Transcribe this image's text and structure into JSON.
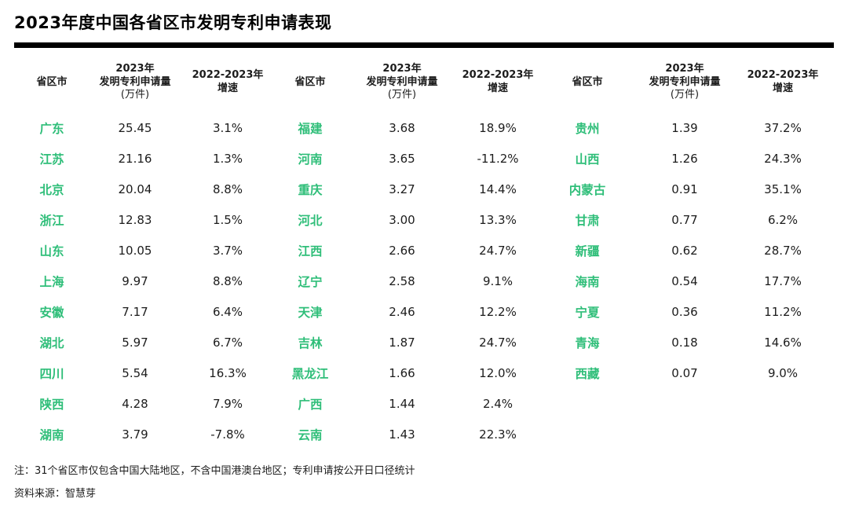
{
  "title": "2023年度中国各省区市发明专利申请表现",
  "colors": {
    "province_green": "#2fbe79",
    "text_dark": "#1c1c1c",
    "rule_black": "#000000"
  },
  "chart_data": {
    "type": "table",
    "title": "2023年度中国各省区市发明专利申请表现",
    "columns": [
      "省区市",
      "2023年发明专利申请量(万件)",
      "2022-2023年增速"
    ],
    "header": {
      "province": "省区市",
      "amount_line1": "2023年",
      "amount_line2": "发明专利申请量",
      "amount_line3": "(万件)",
      "growth_line1": "2022-2023年",
      "growth_line2": "增速"
    },
    "groups": [
      [
        {
          "province": "广东",
          "amount": "25.45",
          "growth": "3.1%"
        },
        {
          "province": "江苏",
          "amount": "21.16",
          "growth": "1.3%"
        },
        {
          "province": "北京",
          "amount": "20.04",
          "growth": "8.8%"
        },
        {
          "province": "浙江",
          "amount": "12.83",
          "growth": "1.5%"
        },
        {
          "province": "山东",
          "amount": "10.05",
          "growth": "3.7%"
        },
        {
          "province": "上海",
          "amount": "9.97",
          "growth": "8.8%"
        },
        {
          "province": "安徽",
          "amount": "7.17",
          "growth": "6.4%"
        },
        {
          "province": "湖北",
          "amount": "5.97",
          "growth": "6.7%"
        },
        {
          "province": "四川",
          "amount": "5.54",
          "growth": "16.3%"
        },
        {
          "province": "陕西",
          "amount": "4.28",
          "growth": "7.9%"
        },
        {
          "province": "湖南",
          "amount": "3.79",
          "growth": "-7.8%"
        }
      ],
      [
        {
          "province": "福建",
          "amount": "3.68",
          "growth": "18.9%"
        },
        {
          "province": "河南",
          "amount": "3.65",
          "growth": "-11.2%"
        },
        {
          "province": "重庆",
          "amount": "3.27",
          "growth": "14.4%"
        },
        {
          "province": "河北",
          "amount": "3.00",
          "growth": "13.3%"
        },
        {
          "province": "江西",
          "amount": "2.66",
          "growth": "24.7%"
        },
        {
          "province": "辽宁",
          "amount": "2.58",
          "growth": "9.1%"
        },
        {
          "province": "天津",
          "amount": "2.46",
          "growth": "12.2%"
        },
        {
          "province": "吉林",
          "amount": "1.87",
          "growth": "24.7%"
        },
        {
          "province": "黑龙江",
          "amount": "1.66",
          "growth": "12.0%"
        },
        {
          "province": "广西",
          "amount": "1.44",
          "growth": "2.4%"
        },
        {
          "province": "云南",
          "amount": "1.43",
          "growth": "22.3%"
        }
      ],
      [
        {
          "province": "贵州",
          "amount": "1.39",
          "growth": "37.2%"
        },
        {
          "province": "山西",
          "amount": "1.26",
          "growth": "24.3%"
        },
        {
          "province": "内蒙古",
          "amount": "0.91",
          "growth": "35.1%"
        },
        {
          "province": "甘肃",
          "amount": "0.77",
          "growth": "6.2%"
        },
        {
          "province": "新疆",
          "amount": "0.62",
          "growth": "28.7%"
        },
        {
          "province": "海南",
          "amount": "0.54",
          "growth": "17.7%"
        },
        {
          "province": "宁夏",
          "amount": "0.36",
          "growth": "11.2%"
        },
        {
          "province": "青海",
          "amount": "0.18",
          "growth": "14.6%"
        },
        {
          "province": "西藏",
          "amount": "0.07",
          "growth": "9.0%"
        }
      ]
    ]
  },
  "notes": {
    "note": "注：31个省区市仅包含中国大陆地区，不含中国港澳台地区；专利申请按公开日口径统计",
    "source": "资料来源：智慧芽"
  }
}
